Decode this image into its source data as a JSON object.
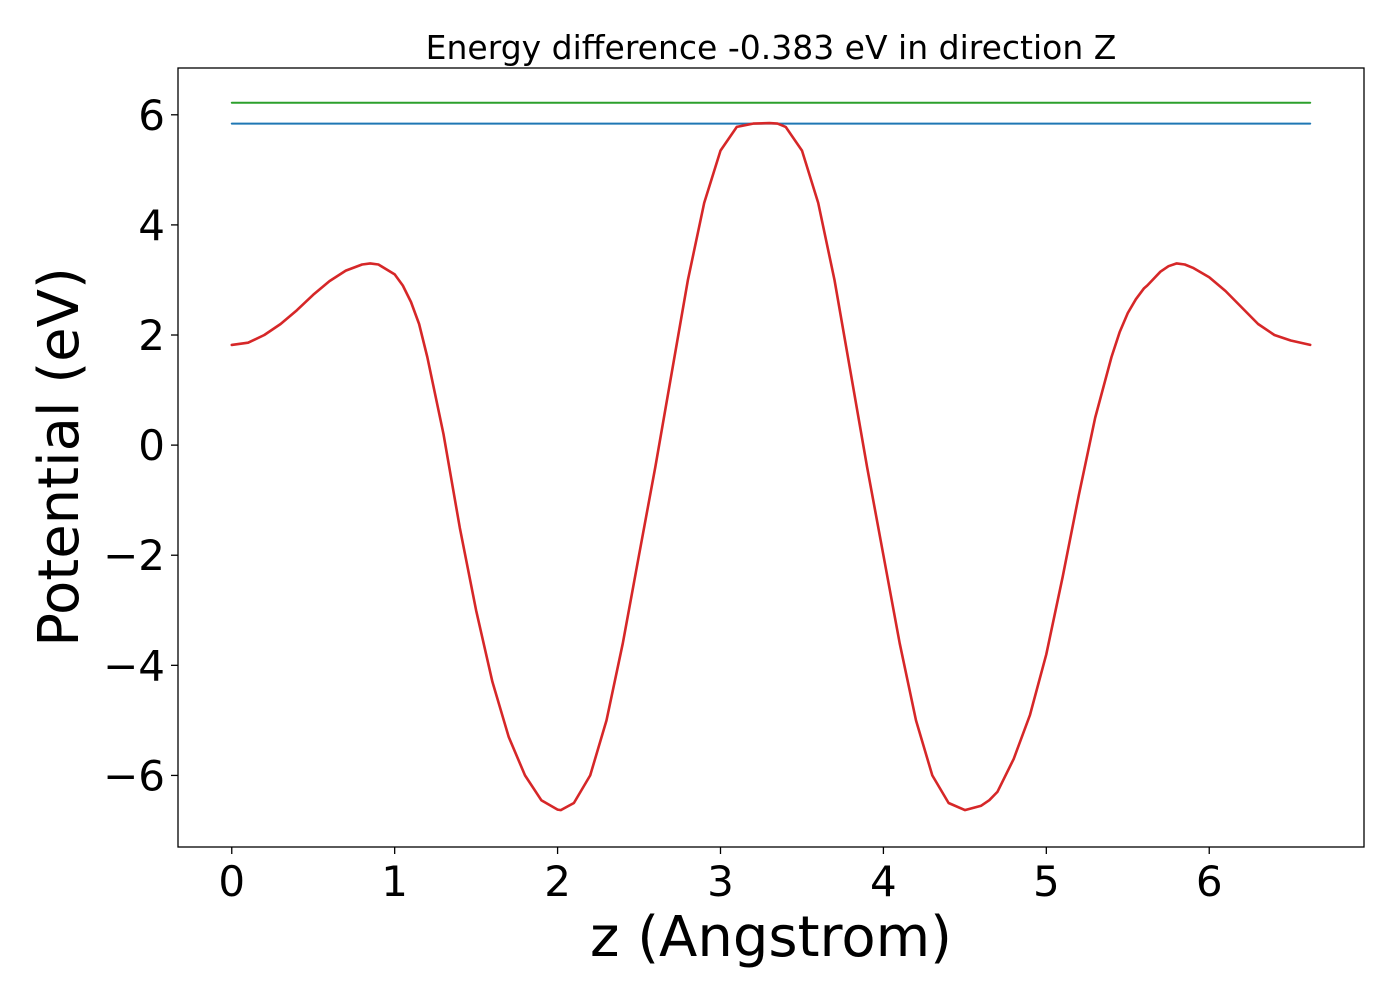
{
  "chart_data": {
    "type": "line",
    "title": "Energy difference -0.383 eV in direction Z",
    "xlabel": "z (Angstrom)",
    "ylabel": "Potential (eV)",
    "xlim": [
      -0.33,
      6.95
    ],
    "ylim": [
      -7.3,
      6.85
    ],
    "x_ticks": [
      0,
      1,
      2,
      3,
      4,
      5,
      6
    ],
    "x_tick_labels": [
      "0",
      "1",
      "2",
      "3",
      "4",
      "5",
      "6"
    ],
    "y_ticks": [
      -6,
      -4,
      -2,
      0,
      2,
      4,
      6
    ],
    "y_tick_labels": [
      "−6",
      "−4",
      "−2",
      "0",
      "2",
      "4",
      "6"
    ],
    "grid": false,
    "legend": "none",
    "series": [
      {
        "kind": "hline",
        "color": "#2ca02c",
        "x": [
          0,
          6.62
        ],
        "y": [
          6.22,
          6.22
        ]
      },
      {
        "kind": "hline",
        "color": "#1f77b4",
        "x": [
          0,
          6.62
        ],
        "y": [
          5.84,
          5.84
        ]
      },
      {
        "kind": "curve",
        "color": "#d62728",
        "x": [
          0.0,
          0.1,
          0.2,
          0.3,
          0.4,
          0.5,
          0.6,
          0.7,
          0.8,
          0.85,
          0.9,
          1.0,
          1.05,
          1.1,
          1.15,
          1.2,
          1.3,
          1.4,
          1.5,
          1.6,
          1.7,
          1.8,
          1.9,
          2.0,
          2.02,
          2.1,
          2.2,
          2.3,
          2.4,
          2.5,
          2.6,
          2.7,
          2.8,
          2.9,
          3.0,
          3.1,
          3.2,
          3.3,
          3.35,
          3.4,
          3.5,
          3.6,
          3.7,
          3.8,
          3.9,
          4.0,
          4.1,
          4.2,
          4.3,
          4.4,
          4.5,
          4.6,
          4.65,
          4.7,
          4.8,
          4.9,
          5.0,
          5.1,
          5.2,
          5.3,
          5.4,
          5.45,
          5.5,
          5.55,
          5.6,
          5.62,
          5.7,
          5.75,
          5.8,
          5.85,
          5.9,
          6.0,
          6.1,
          6.2,
          6.3,
          6.4,
          6.5,
          6.62
        ],
        "y": [
          1.82,
          1.86,
          2.0,
          2.2,
          2.45,
          2.73,
          2.98,
          3.17,
          3.28,
          3.3,
          3.28,
          3.1,
          2.9,
          2.6,
          2.2,
          1.6,
          0.2,
          -1.5,
          -3.0,
          -4.3,
          -5.3,
          -6.0,
          -6.45,
          -6.62,
          -6.63,
          -6.5,
          -6.0,
          -5.0,
          -3.6,
          -2.0,
          -0.4,
          1.3,
          3.0,
          4.4,
          5.35,
          5.78,
          5.84,
          5.85,
          5.84,
          5.78,
          5.35,
          4.4,
          3.0,
          1.3,
          -0.4,
          -2.0,
          -3.6,
          -5.0,
          -6.0,
          -6.5,
          -6.63,
          -6.55,
          -6.45,
          -6.3,
          -5.7,
          -4.9,
          -3.8,
          -2.4,
          -0.9,
          0.5,
          1.6,
          2.05,
          2.4,
          2.65,
          2.85,
          2.9,
          3.15,
          3.25,
          3.3,
          3.28,
          3.22,
          3.05,
          2.8,
          2.5,
          2.2,
          2.0,
          1.9,
          1.82
        ]
      }
    ]
  }
}
